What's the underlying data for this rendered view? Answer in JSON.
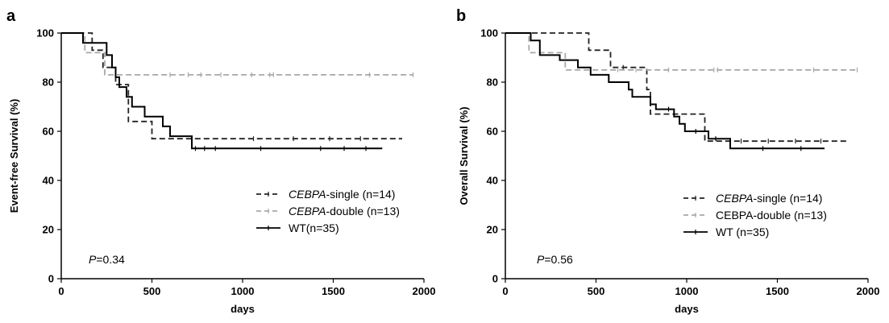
{
  "chart_data": [
    {
      "type": "line",
      "panel_label": "a",
      "xlabel": "days",
      "ylabel": "Event-free Survival (%)",
      "xlim": [
        0,
        2000
      ],
      "ylim": [
        0,
        100
      ],
      "xticks": [
        "0",
        "500",
        "1000",
        "1500",
        "2000"
      ],
      "yticks": [
        "0",
        "20",
        "40",
        "60",
        "80",
        "100"
      ],
      "grid": false,
      "legend_position": "right-middle",
      "annotation": {
        "italic": "P",
        "text": "=0.34"
      },
      "series": [
        {
          "name_italic": "CEBPA",
          "name_rest": "-single (n=14)",
          "color": "#222222",
          "dash": "7,4",
          "steps": [
            [
              0,
              100
            ],
            [
              170,
              100
            ],
            [
              170,
              93
            ],
            [
              230,
              93
            ],
            [
              230,
              86
            ],
            [
              300,
              86
            ],
            [
              300,
              79
            ],
            [
              370,
              79
            ],
            [
              370,
              64
            ],
            [
              500,
              64
            ],
            [
              500,
              57
            ],
            [
              1880,
              57
            ]
          ],
          "censor": [
            1060,
            1280,
            1480,
            1650
          ]
        },
        {
          "name_italic": "CEBPA",
          "name_rest": "-double (n=13)",
          "color": "#a8a8a8",
          "dash": "7,4",
          "steps": [
            [
              0,
              100
            ],
            [
              130,
              100
            ],
            [
              130,
              92
            ],
            [
              240,
              92
            ],
            [
              240,
              83
            ],
            [
              1940,
              83
            ]
          ],
          "censor": [
            600,
            700,
            770,
            880,
            1050,
            1150,
            1170,
            1700,
            1940
          ]
        },
        {
          "name_italic": "",
          "name_rest": "WT(n=35)",
          "color": "#000000",
          "dash": "",
          "steps": [
            [
              0,
              100
            ],
            [
              120,
              100
            ],
            [
              120,
              96
            ],
            [
              250,
              96
            ],
            [
              250,
              91
            ],
            [
              280,
              91
            ],
            [
              280,
              86
            ],
            [
              300,
              86
            ],
            [
              300,
              82
            ],
            [
              320,
              82
            ],
            [
              320,
              78
            ],
            [
              360,
              78
            ],
            [
              360,
              74
            ],
            [
              390,
              74
            ],
            [
              390,
              70
            ],
            [
              460,
              70
            ],
            [
              460,
              66
            ],
            [
              560,
              66
            ],
            [
              560,
              62
            ],
            [
              600,
              62
            ],
            [
              600,
              58
            ],
            [
              720,
              58
            ],
            [
              720,
              53
            ],
            [
              1770,
              53
            ]
          ],
          "censor": [
            740,
            790,
            850,
            1100,
            1430,
            1560,
            1680
          ]
        }
      ]
    },
    {
      "type": "line",
      "panel_label": "b",
      "xlabel": "days",
      "ylabel": "Overall Survival (%)",
      "xlim": [
        0,
        2000
      ],
      "ylim": [
        0,
        100
      ],
      "xticks": [
        "0",
        "500",
        "1000",
        "1500",
        "2000"
      ],
      "yticks": [
        "0",
        "20",
        "40",
        "60",
        "80",
        "100"
      ],
      "grid": false,
      "legend_position": "right-middle",
      "annotation": {
        "italic": "P",
        "text": "=0.56"
      },
      "series": [
        {
          "name_italic": "CEBPA",
          "name_rest": "-single (n=14)",
          "color": "#222222",
          "dash": "7,4",
          "steps": [
            [
              0,
              100
            ],
            [
              460,
              100
            ],
            [
              460,
              93
            ],
            [
              580,
              93
            ],
            [
              580,
              86
            ],
            [
              780,
              86
            ],
            [
              780,
              77
            ],
            [
              800,
              77
            ],
            [
              800,
              67
            ],
            [
              1100,
              67
            ],
            [
              1100,
              56
            ],
            [
              1880,
              56
            ]
          ],
          "censor": [
            650,
            1300,
            1450,
            1600,
            1740
          ]
        },
        {
          "name_italic": "",
          "name_rest": "CEBPA-double (n=13)",
          "color": "#a8a8a8",
          "dash": "7,4",
          "steps": [
            [
              0,
              100
            ],
            [
              130,
              100
            ],
            [
              130,
              92
            ],
            [
              330,
              92
            ],
            [
              330,
              85
            ],
            [
              1940,
              85
            ]
          ],
          "censor": [
            620,
            720,
            900,
            1150,
            1170,
            1700,
            1940
          ]
        },
        {
          "name_italic": "",
          "name_rest": "WT (n=35)",
          "color": "#000000",
          "dash": "",
          "steps": [
            [
              0,
              100
            ],
            [
              140,
              100
            ],
            [
              140,
              97
            ],
            [
              190,
              97
            ],
            [
              190,
              91
            ],
            [
              300,
              91
            ],
            [
              300,
              89
            ],
            [
              400,
              89
            ],
            [
              400,
              86
            ],
            [
              470,
              86
            ],
            [
              470,
              83
            ],
            [
              570,
              83
            ],
            [
              570,
              80
            ],
            [
              680,
              80
            ],
            [
              680,
              77
            ],
            [
              700,
              77
            ],
            [
              700,
              74
            ],
            [
              800,
              74
            ],
            [
              800,
              71
            ],
            [
              830,
              71
            ],
            [
              830,
              69
            ],
            [
              930,
              69
            ],
            [
              930,
              66
            ],
            [
              960,
              66
            ],
            [
              960,
              63
            ],
            [
              990,
              63
            ],
            [
              990,
              60
            ],
            [
              1120,
              60
            ],
            [
              1120,
              57
            ],
            [
              1240,
              57
            ],
            [
              1240,
              53
            ],
            [
              1760,
              53
            ]
          ],
          "censor": [
            900,
            1050,
            1160,
            1420,
            1630
          ]
        }
      ]
    }
  ]
}
